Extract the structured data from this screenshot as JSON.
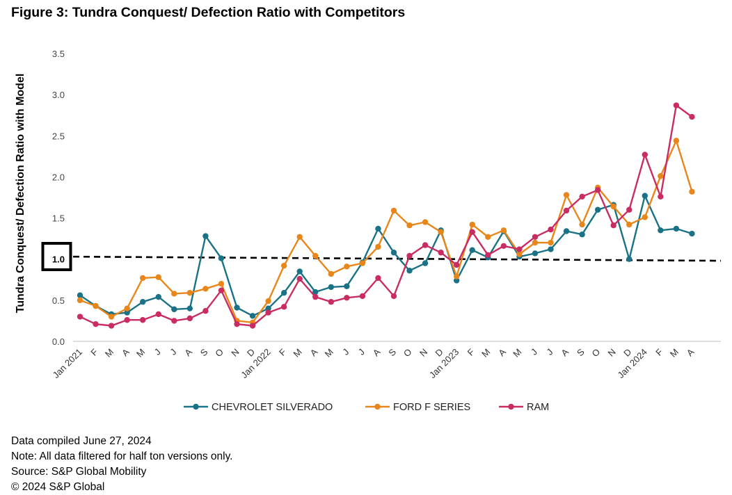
{
  "figure_title": "Figure 3: Tundra Conquest/ Defection Ratio with Competitors",
  "colors": {
    "chevrolet": "#1a7287",
    "ford": "#e9861a",
    "ram": "#c92c62",
    "reference": "#000000",
    "axis": "#bfbfbf"
  },
  "chart_data": {
    "type": "line",
    "title": "Figure 3: Tundra Conquest/ Defection Ratio with Competitors",
    "xlabel": "",
    "ylabel": "Tundra Conquest/ Defection Ratio with Model",
    "ylim": [
      0,
      3.5
    ],
    "yticks": [
      "0.0",
      "0.5",
      "1.0",
      "1.5",
      "2.0",
      "2.5",
      "3.0",
      "3.5"
    ],
    "highlighted_tick": "1.0",
    "grid": false,
    "legend_position": "bottom",
    "categories": [
      "Jan 2021",
      "F",
      "M",
      "A",
      "M",
      "J",
      "J",
      "A",
      "S",
      "O",
      "N",
      "D",
      "Jan 2022",
      "F",
      "M",
      "A",
      "M",
      "J",
      "J",
      "A",
      "S",
      "O",
      "N",
      "D",
      "Jan 2023",
      "F",
      "M",
      "A",
      "M",
      "J",
      "J",
      "A",
      "S",
      "O",
      "N",
      "D",
      "Jan 2024",
      "F",
      "M",
      "A"
    ],
    "reference_line": {
      "style": "dashed",
      "start": 1.03,
      "end": 0.98
    },
    "series": [
      {
        "name": "CHEVROLET SILVERADO",
        "color_key": "chevrolet",
        "values": [
          0.56,
          0.43,
          0.33,
          0.35,
          0.48,
          0.54,
          0.39,
          0.4,
          1.28,
          1.01,
          0.41,
          0.31,
          0.4,
          0.59,
          0.85,
          0.6,
          0.66,
          0.67,
          0.96,
          1.37,
          1.08,
          0.86,
          0.95,
          1.35,
          0.74,
          1.11,
          1.02,
          1.34,
          1.03,
          1.07,
          1.12,
          1.34,
          1.3,
          1.6,
          1.66,
          1.0,
          1.77,
          1.35,
          1.37,
          1.31
        ]
      },
      {
        "name": "FORD F SERIES",
        "color_key": "ford",
        "values": [
          0.5,
          0.43,
          0.3,
          0.4,
          0.77,
          0.78,
          0.58,
          0.59,
          0.64,
          0.7,
          0.25,
          0.23,
          0.49,
          0.92,
          1.27,
          1.04,
          0.82,
          0.91,
          0.95,
          1.15,
          1.59,
          1.41,
          1.45,
          1.33,
          0.79,
          1.42,
          1.27,
          1.35,
          1.06,
          1.2,
          1.2,
          1.78,
          1.42,
          1.87,
          1.64,
          1.42,
          1.51,
          2.01,
          2.44,
          1.82
        ]
      },
      {
        "name": "RAM",
        "color_key": "ram",
        "values": [
          0.3,
          0.21,
          0.19,
          0.26,
          0.26,
          0.33,
          0.25,
          0.28,
          0.37,
          0.62,
          0.21,
          0.19,
          0.35,
          0.42,
          0.76,
          0.54,
          0.48,
          0.53,
          0.55,
          0.77,
          0.55,
          1.04,
          1.17,
          1.08,
          0.93,
          1.33,
          1.05,
          1.16,
          1.12,
          1.27,
          1.36,
          1.59,
          1.76,
          1.84,
          1.41,
          1.6,
          2.27,
          1.76,
          2.87,
          2.73
        ]
      }
    ]
  },
  "footer": {
    "compiled": "Data compiled June 27, 2024",
    "note": "Note: All data filtered for half ton versions only.",
    "source": "Source: S&P Global Mobility",
    "copyright": "© 2024 S&P Global"
  }
}
